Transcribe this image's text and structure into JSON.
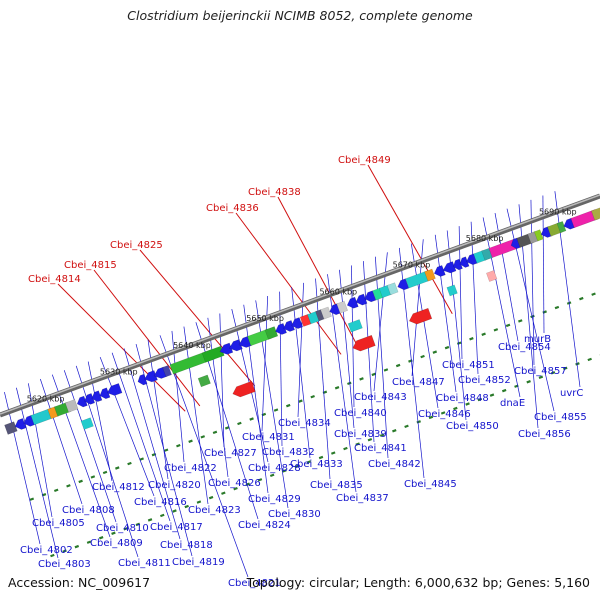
{
  "title": "Clostridium beijerinckii NCIMB 8052, complete genome",
  "footer": {
    "accession": "Accession: NC_009617",
    "summary": "Topology: circular; Length: 6,000,632 bp; Genes: 5,160"
  },
  "scale": [
    {
      "label": "5620 kbp",
      "pos": 5620
    },
    {
      "label": "5630 kbp",
      "pos": 5630
    },
    {
      "label": "5640 kbp",
      "pos": 5640
    },
    {
      "label": "5650 kbp",
      "pos": 5650
    },
    {
      "label": "5660 kbp",
      "pos": 5660
    },
    {
      "label": "5670 kbp",
      "pos": 5670
    },
    {
      "label": "5680 kbp",
      "pos": 5680
    },
    {
      "label": "5690 kbp",
      "pos": 5690
    }
  ],
  "highlighted_genes": [
    {
      "label": "Cbei_4814",
      "pos": 5637.0
    },
    {
      "label": "Cbei_4815",
      "pos": 5639.0
    },
    {
      "label": "Cbei_4825",
      "pos": 5646.5
    },
    {
      "label": "Cbei_4836",
      "pos": 5658.3
    },
    {
      "label": "Cbei_4838",
      "pos": 5660.7
    },
    {
      "label": "Cbei_4849",
      "pos": 5673.5
    }
  ],
  "genes": [
    {
      "label": "Cbei_4802"
    },
    {
      "label": "Cbei_4803"
    },
    {
      "label": "Cbei_4805"
    },
    {
      "label": "Cbei_4808"
    },
    {
      "label": "Cbei_4809"
    },
    {
      "label": "Cbei_4810"
    },
    {
      "label": "Cbei_4811"
    },
    {
      "label": "Cbei_4812"
    },
    {
      "label": "Cbei_4816"
    },
    {
      "label": "Cbei_4817"
    },
    {
      "label": "Cbei_4818"
    },
    {
      "label": "Cbei_4819"
    },
    {
      "label": "Cbei_4820"
    },
    {
      "label": "Cbei_4821"
    },
    {
      "label": "Cbei_4822"
    },
    {
      "label": "Cbei_4823"
    },
    {
      "label": "Cbei_4824"
    },
    {
      "label": "Cbei_4826"
    },
    {
      "label": "Cbei_4827"
    },
    {
      "label": "Cbei_4828"
    },
    {
      "label": "Cbei_4829"
    },
    {
      "label": "Cbei_4830"
    },
    {
      "label": "Cbei_4831"
    },
    {
      "label": "Cbei_4832"
    },
    {
      "label": "Cbei_4833"
    },
    {
      "label": "Cbei_4834"
    },
    {
      "label": "Cbei_4835"
    },
    {
      "label": "Cbei_4837"
    },
    {
      "label": "Cbei_4839"
    },
    {
      "label": "Cbei_4840"
    },
    {
      "label": "Cbei_4841"
    },
    {
      "label": "Cbei_4842"
    },
    {
      "label": "Cbei_4843"
    },
    {
      "label": "Cbei_4845"
    },
    {
      "label": "Cbei_4846"
    },
    {
      "label": "Cbei_4847"
    },
    {
      "label": "Cbei_4848"
    },
    {
      "label": "Cbei_4850"
    },
    {
      "label": "Cbei_4851"
    },
    {
      "label": "Cbei_4852"
    },
    {
      "label": "dnaE"
    },
    {
      "label": "Cbei_4854"
    },
    {
      "label": "Cbei_4855"
    },
    {
      "label": "Cbei_4856"
    },
    {
      "label": "Cbei_4857"
    },
    {
      "label": "murB"
    },
    {
      "label": "uvrC"
    }
  ],
  "colors": {
    "backbone": "#888888",
    "gene": "#1e1ee6",
    "label_blue": "#1414cc",
    "label_red": "#d01010",
    "tick": "#2a7a2a",
    "rna": "#ee2222"
  }
}
